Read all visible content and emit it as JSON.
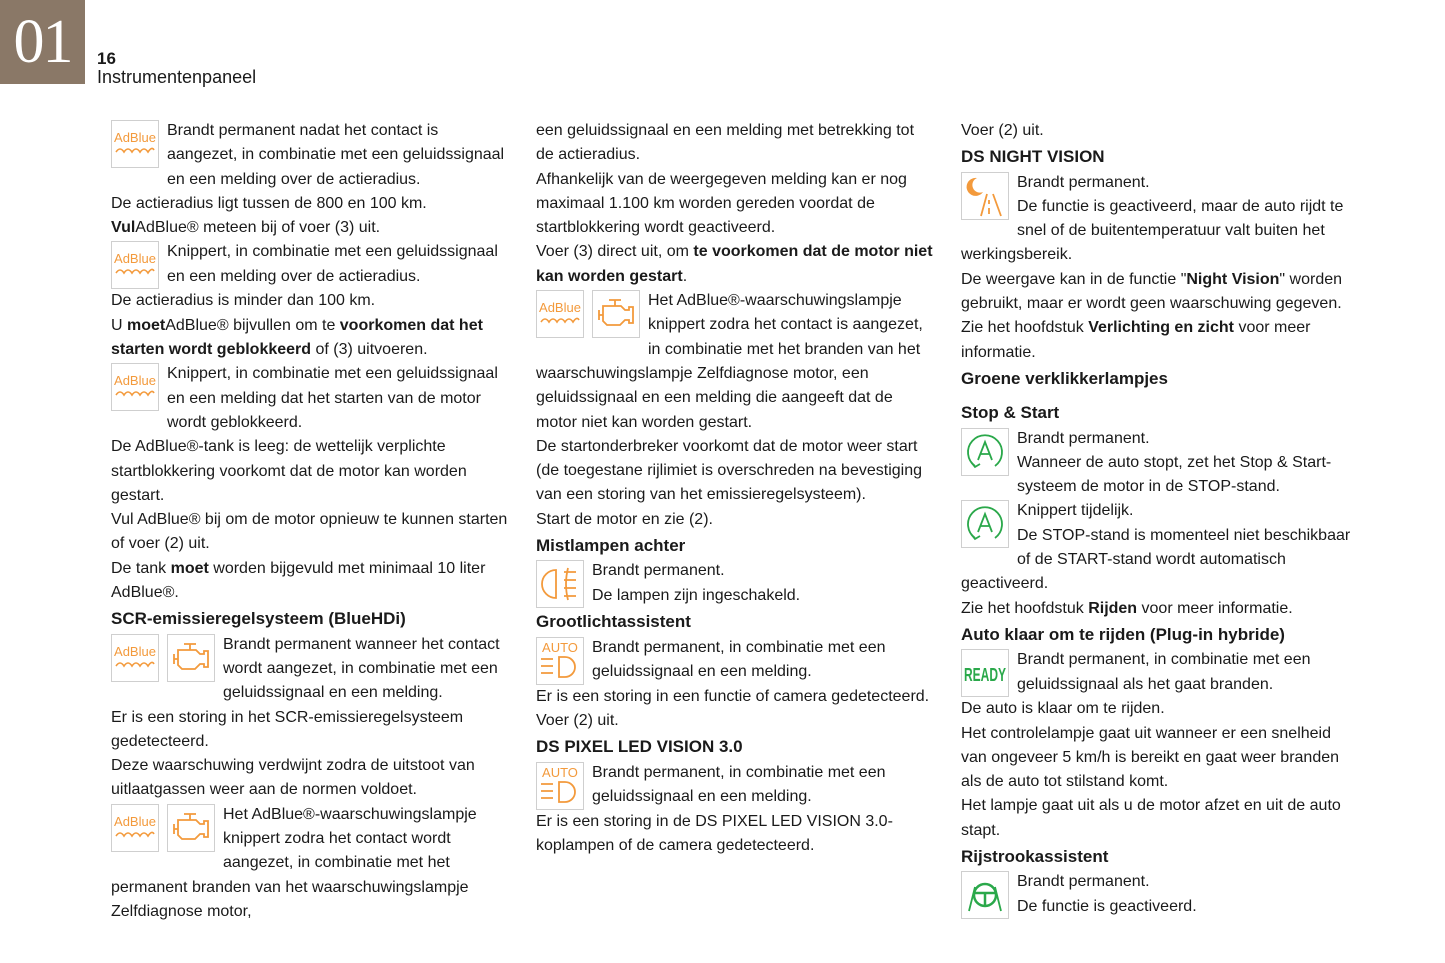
{
  "header": {
    "chapter": "01",
    "page_number": "16",
    "section_title": "Instrumentenpaneel"
  },
  "colors": {
    "chapter_bg": "#8a7867",
    "warning_orange": "#f39a3c",
    "indicator_green": "#2aa84a"
  },
  "icon_labels": {
    "adblue": "AdBlue",
    "auto": "AUTO",
    "ready": "READY"
  },
  "columns": [
    {
      "blocks": [
        {
          "type": "icon",
          "icons": [
            "adblue"
          ],
          "runs": [
            {
              "t": "Brandt permanent nadat het contact is aangezet, in combinatie met een geluidssignaal en een melding over de actieradius."
            }
          ]
        },
        {
          "type": "p",
          "runs": [
            {
              "t": "De actieradius ligt tussen de 800 en 100 km."
            }
          ]
        },
        {
          "type": "p",
          "runs": [
            {
              "t": "Vul",
              "b": true
            },
            {
              "t": "AdBlue® meteen bij of voer (3) uit."
            }
          ]
        },
        {
          "type": "icon",
          "icons": [
            "adblue"
          ],
          "runs": [
            {
              "t": "Knippert, in combinatie met een geluidssignaal en een melding over de actieradius."
            }
          ]
        },
        {
          "type": "p",
          "runs": [
            {
              "t": "De actieradius is minder dan 100 km."
            }
          ]
        },
        {
          "type": "p",
          "runs": [
            {
              "t": "U "
            },
            {
              "t": "moet",
              "b": true
            },
            {
              "t": "AdBlue® bijvullen om te "
            },
            {
              "t": "voorkomen dat het starten wordt geblokkeerd",
              "b": true
            },
            {
              "t": " of (3) uitvoeren."
            }
          ]
        },
        {
          "type": "icon",
          "icons": [
            "adblue"
          ],
          "runs": [
            {
              "t": "Knippert, in combinatie met een geluidssignaal en een melding dat het starten van de motor wordt geblokkeerd."
            }
          ]
        },
        {
          "type": "p",
          "runs": [
            {
              "t": "De AdBlue®-tank is leeg: de wettelijk verplichte startblokkering voorkomt dat de motor kan worden gestart."
            }
          ]
        },
        {
          "type": "p",
          "runs": [
            {
              "t": "Vul AdBlue® bij om de motor opnieuw te kunnen starten of voer (2) uit."
            }
          ]
        },
        {
          "type": "p",
          "runs": [
            {
              "t": "De tank "
            },
            {
              "t": "moet",
              "b": true
            },
            {
              "t": " worden bijgevuld met minimaal 10 liter AdBlue®."
            }
          ]
        },
        {
          "type": "h",
          "text": "SCR-emissieregelsysteem (BlueHDi)"
        },
        {
          "type": "icon",
          "icons": [
            "adblue",
            "engine"
          ],
          "runs": [
            {
              "t": "Brandt permanent wanneer het contact wordt aangezet, in combinatie met een geluidssignaal en een melding."
            }
          ]
        },
        {
          "type": "p",
          "runs": [
            {
              "t": "Er is een storing in het SCR-emissieregelsysteem gedetecteerd."
            }
          ]
        },
        {
          "type": "p",
          "runs": [
            {
              "t": "Deze waarschuwing verdwijnt zodra de uitstoot van uitlaatgassen weer aan de normen voldoet."
            }
          ]
        },
        {
          "type": "icon",
          "icons": [
            "adblue",
            "engine"
          ],
          "runs": [
            {
              "t": "Het AdBlue®-waarschuwingslampje knippert zodra het contact wordt aangezet, in combinatie met het permanent branden van het waarschuwingslampje Zelfdiagnose motor,"
            }
          ]
        }
      ]
    },
    {
      "blocks": [
        {
          "type": "p",
          "runs": [
            {
              "t": "een geluidssignaal en een melding met betrekking tot de actieradius."
            }
          ]
        },
        {
          "type": "p",
          "runs": [
            {
              "t": "Afhankelijk van de weergegeven melding kan er nog maximaal 1.100 km worden gereden voordat de startblokkering wordt geactiveerd."
            }
          ]
        },
        {
          "type": "p",
          "runs": [
            {
              "t": "Voer (3) direct uit, om "
            },
            {
              "t": "te voorkomen dat de motor niet kan worden gestart",
              "b": true
            },
            {
              "t": "."
            }
          ]
        },
        {
          "type": "icon",
          "icons": [
            "adblue",
            "engine"
          ],
          "runs": [
            {
              "t": "Het AdBlue®-waarschuwingslampje knippert zodra het contact is aangezet, in combinatie met het branden van het waarschuwingslampje Zelfdiagnose motor, een geluidssignaal en een melding die aangeeft dat de motor niet kan worden gestart."
            }
          ]
        },
        {
          "type": "p",
          "runs": [
            {
              "t": "De startonderbreker voorkomt dat de motor weer start (de toegestane rijlimiet is overschreden na bevestiging van een storing van het emissieregelsysteem)."
            }
          ]
        },
        {
          "type": "p",
          "runs": [
            {
              "t": "Start de motor en zie (2)."
            }
          ]
        },
        {
          "type": "h",
          "text": "Mistlampen achter"
        },
        {
          "type": "icon",
          "icons": [
            "rearfog"
          ],
          "runs": [
            {
              "t": "Brandt permanent.\nDe lampen zijn ingeschakeld."
            }
          ]
        },
        {
          "type": "h",
          "text": "Grootlichtassistent"
        },
        {
          "type": "icon",
          "icons": [
            "auto"
          ],
          "runs": [
            {
              "t": "Brandt permanent, in combinatie met een geluidssignaal en een melding."
            }
          ]
        },
        {
          "type": "p",
          "runs": [
            {
              "t": "Er is een storing in een functie of camera gedetecteerd."
            }
          ]
        },
        {
          "type": "p",
          "runs": [
            {
              "t": "Voer (2) uit."
            }
          ]
        },
        {
          "type": "h",
          "text": "DS PIXEL LED VISION 3.0"
        },
        {
          "type": "icon",
          "icons": [
            "auto"
          ],
          "runs": [
            {
              "t": "Brandt permanent, in combinatie met een geluidssignaal en een melding."
            }
          ]
        },
        {
          "type": "p",
          "runs": [
            {
              "t": "Er is een storing in de DS PIXEL LED VISION 3.0-koplampen of de camera gedetecteerd."
            }
          ]
        }
      ]
    },
    {
      "blocks": [
        {
          "type": "p",
          "runs": [
            {
              "t": "Voer (2) uit."
            }
          ]
        },
        {
          "type": "h",
          "text": "DS NIGHT VISION"
        },
        {
          "type": "icon",
          "icons": [
            "night"
          ],
          "runs": [
            {
              "t": "Brandt permanent.\nDe functie is geactiveerd, maar de auto rijdt te snel of de buitentemperatuur valt buiten het werkingsbereik."
            }
          ]
        },
        {
          "type": "p",
          "runs": [
            {
              "t": "De weergave kan in de functie \""
            },
            {
              "t": "Night Vision",
              "b": true
            },
            {
              "t": "\" worden gebruikt, maar er wordt geen waarschuwing gegeven."
            }
          ]
        },
        {
          "type": "p",
          "runs": [
            {
              "t": "Zie het hoofdstuk "
            },
            {
              "t": "Verlichting en zicht",
              "b": true
            },
            {
              "t": " voor meer informatie."
            }
          ]
        },
        {
          "type": "h",
          "text": "Groene verklikkerlampjes",
          "gap": true
        },
        {
          "type": "h",
          "text": "Stop & Start"
        },
        {
          "type": "icon",
          "icons": [
            "stopstart"
          ],
          "runs": [
            {
              "t": "Brandt permanent.\nWanneer de auto stopt, zet het Stop & Start-systeem de motor in de STOP-stand."
            }
          ]
        },
        {
          "type": "icon",
          "icons": [
            "stopstart"
          ],
          "runs": [
            {
              "t": "Knippert tijdelijk.\nDe STOP-stand is momenteel niet beschikbaar of de START-stand wordt automatisch geactiveerd."
            }
          ]
        },
        {
          "type": "p",
          "runs": [
            {
              "t": "Zie het hoofdstuk "
            },
            {
              "t": "Rijden",
              "b": true
            },
            {
              "t": " voor meer informatie."
            }
          ]
        },
        {
          "type": "h",
          "text": "Auto klaar om te rijden (Plug-in hybride)"
        },
        {
          "type": "icon",
          "icons": [
            "ready"
          ],
          "runs": [
            {
              "t": "Brandt permanent, in combinatie met een geluidssignaal als het gaat branden."
            }
          ]
        },
        {
          "type": "p",
          "runs": [
            {
              "t": "De auto is klaar om te rijden."
            }
          ]
        },
        {
          "type": "p",
          "runs": [
            {
              "t": "Het controlelampje gaat uit wanneer er een snelheid van ongeveer 5 km/h is bereikt en gaat weer branden als de auto tot stilstand komt."
            }
          ]
        },
        {
          "type": "p",
          "runs": [
            {
              "t": "Het lampje gaat uit als u de motor afzet en uit de auto stapt."
            }
          ]
        },
        {
          "type": "h",
          "text": "Rijstrookassistent"
        },
        {
          "type": "icon",
          "icons": [
            "lane"
          ],
          "runs": [
            {
              "t": "Brandt permanent.\nDe functie is geactiveerd."
            }
          ]
        }
      ]
    }
  ]
}
